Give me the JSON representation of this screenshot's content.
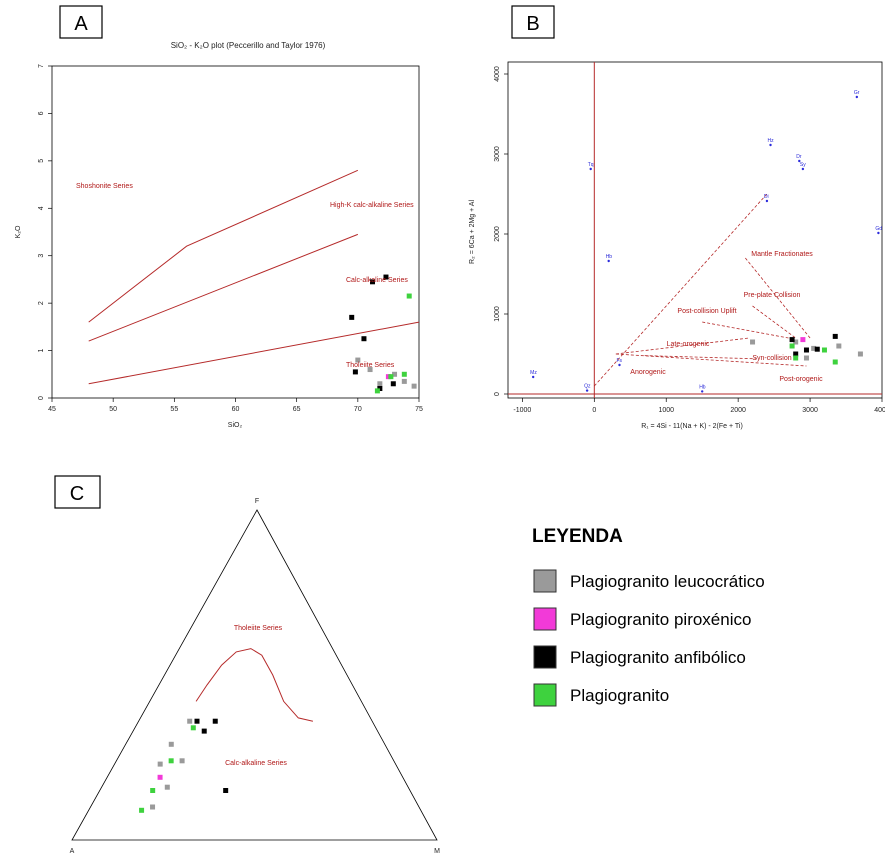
{
  "colors": {
    "leucocratico": "#9a9a9a",
    "piroxenico": "#f23ad8",
    "anfibolico": "#000000",
    "plagiogranito": "#3ed23e",
    "boundary": "#b52a2a",
    "ref_blue": "#2c2cdc"
  },
  "legend": {
    "title": "LEYENDA",
    "items": [
      {
        "label": "Plagiogranito leucocrático",
        "color": "#9a9a9a"
      },
      {
        "label": "Plagiogranito piroxénico",
        "color": "#f23ad8"
      },
      {
        "label": "Plagiogranito anfibólico",
        "color": "#000000"
      },
      {
        "label": "Plagiogranito",
        "color": "#3ed23e"
      }
    ]
  },
  "chart_data": [
    {
      "panel": "A",
      "type": "scatter",
      "title": "SiO₂ - K₂O plot (Peccerillo and Taylor 1976)",
      "xlabel": "SiO₂",
      "ylabel": "K₂O",
      "xlim": [
        45,
        75
      ],
      "ylim": [
        0,
        7
      ],
      "xticks": [
        "45",
        "50",
        "55",
        "60",
        "65",
        "70",
        "75"
      ],
      "yticks": [
        "0",
        "1",
        "2",
        "3",
        "4",
        "5",
        "6",
        "7"
      ],
      "field_labels": [
        "Shoshonite Series",
        "High-K calc-alkaline Series",
        "Calc-alkaline Series",
        "Tholeiite Series"
      ],
      "boundaries": [
        [
          [
            48,
            1.6
          ],
          [
            56,
            3.2
          ],
          [
            70,
            4.8
          ]
        ],
        [
          [
            48,
            1.2
          ],
          [
            70,
            3.45
          ]
        ],
        [
          [
            48,
            0.3
          ],
          [
            75,
            1.6
          ]
        ]
      ],
      "series": [
        {
          "name": "Plagiogranito leucocrático",
          "color": "#9a9a9a",
          "points": [
            [
              70,
              0.8
            ],
            [
              71.8,
              0.3
            ],
            [
              73,
              0.5
            ],
            [
              74.6,
              0.25
            ],
            [
              71,
              0.6
            ],
            [
              73.8,
              0.35
            ]
          ]
        },
        {
          "name": "Plagiogranito piroxénico",
          "color": "#f23ad8",
          "points": [
            [
              72.5,
              0.45
            ]
          ]
        },
        {
          "name": "Plagiogranito anfibólico",
          "color": "#000000",
          "points": [
            [
              69.5,
              1.7
            ],
            [
              70.5,
              1.25
            ],
            [
              71.2,
              2.45
            ],
            [
              72.3,
              2.55
            ],
            [
              69.8,
              0.55
            ],
            [
              72.9,
              0.3
            ],
            [
              71.8,
              0.2
            ]
          ]
        },
        {
          "name": "Plagiogranito",
          "color": "#3ed23e",
          "points": [
            [
              74.2,
              2.15
            ],
            [
              73.8,
              0.5
            ],
            [
              71.6,
              0.15
            ],
            [
              72.7,
              0.45
            ]
          ]
        }
      ]
    },
    {
      "panel": "B",
      "type": "scatter",
      "xlabel": "R₁ = 4Si - 11(Na + K) - 2(Fe + Ti)",
      "ylabel": "R₂ = 6Ca + 2Mg + Al",
      "xlim": [
        -1000,
        4000
      ],
      "ylim": [
        0,
        4000
      ],
      "xticks": [
        "-1000",
        "0",
        "1000",
        "2000",
        "3000",
        "4000"
      ],
      "yticks": [
        "0",
        "1000",
        "2000",
        "3000",
        "4000"
      ],
      "field_labels": [
        "Mantle Fractionates",
        "Pre-plate Collision",
        "Post-collision Uplift",
        "Late-orogenic",
        "Syn-collision",
        "Post-orogenic",
        "Anorogenic"
      ],
      "reference_labels": [
        "Gr",
        "Hz",
        "Dr",
        "Di",
        "Tq",
        "Gd",
        "Hb",
        "Mz",
        "Fs",
        "Qz",
        "Hb",
        "Sy"
      ],
      "series": [
        {
          "name": "Plagiogranito leucocrático",
          "color": "#9a9a9a",
          "points": [
            [
              2200,
              650
            ],
            [
              3400,
              600
            ],
            [
              3050,
              570
            ],
            [
              3700,
              500
            ],
            [
              2950,
              450
            ],
            [
              2800,
              650
            ]
          ]
        },
        {
          "name": "Plagiogranito piroxénico",
          "color": "#f23ad8",
          "points": [
            [
              2900,
              680
            ]
          ]
        },
        {
          "name": "Plagiogranito anfibólico",
          "color": "#000000",
          "points": [
            [
              2750,
              680
            ],
            [
              3350,
              720
            ],
            [
              2950,
              550
            ],
            [
              2800,
              500
            ],
            [
              3100,
              560
            ]
          ]
        },
        {
          "name": "Plagiogranito",
          "color": "#3ed23e",
          "points": [
            [
              2750,
              600
            ],
            [
              3200,
              550
            ],
            [
              3350,
              400
            ],
            [
              2800,
              450
            ]
          ]
        }
      ]
    },
    {
      "panel": "C",
      "type": "scatter",
      "vertices": [
        "F",
        "A",
        "M"
      ],
      "field_labels": [
        "Tholeiite Series",
        "Calc-alkaline Series"
      ],
      "series": [
        {
          "name": "Plagiogranito leucocrático",
          "color": "#9a9a9a",
          "points": [
            [
              0.32,
              0.36
            ],
            [
              0.26,
              0.16
            ],
            [
              0.3,
              0.24
            ],
            [
              0.22,
              0.1
            ],
            [
              0.24,
              0.23
            ],
            [
              0.27,
              0.29
            ]
          ]
        },
        {
          "name": "Plagiogranito piroxénico",
          "color": "#f23ad8",
          "points": [
            [
              0.24,
              0.19
            ]
          ]
        },
        {
          "name": "Plagiogranito anfibólico",
          "color": "#000000",
          "points": [
            [
              0.34,
              0.36
            ],
            [
              0.39,
              0.36
            ],
            [
              0.36,
              0.33
            ],
            [
              0.42,
              0.15
            ]
          ]
        },
        {
          "name": "Plagiogranito",
          "color": "#3ed23e",
          "points": [
            [
              0.33,
              0.34
            ],
            [
              0.27,
              0.24
            ],
            [
              0.22,
              0.15
            ],
            [
              0.19,
              0.09
            ]
          ]
        }
      ]
    }
  ],
  "panel_labels": {
    "a": "A",
    "b": "B",
    "c": "C"
  }
}
